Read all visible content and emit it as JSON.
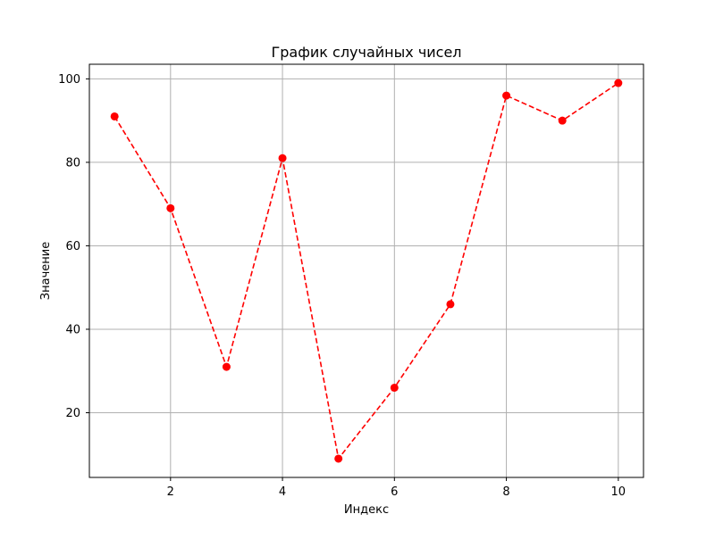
{
  "chart_data": {
    "type": "line",
    "title": "График случайных чисел",
    "xlabel": "Индекс",
    "ylabel": "Значение",
    "x": [
      1,
      2,
      3,
      4,
      5,
      6,
      7,
      8,
      9,
      10
    ],
    "series": [
      {
        "values": [
          91,
          69,
          31,
          81,
          9,
          26,
          46,
          96,
          90,
          99
        ],
        "color": "#ff0000",
        "line_style": "dashed",
        "marker": "circle"
      }
    ],
    "xlim": [
      0.55,
      10.45
    ],
    "ylim": [
      4.5,
      103.5
    ],
    "xticks": [
      2,
      4,
      6,
      8,
      10
    ],
    "yticks": [
      20,
      40,
      60,
      80,
      100
    ],
    "grid": true,
    "colors": {
      "grid": "#b0b0b0",
      "axes": "#000000",
      "background": "#ffffff"
    }
  }
}
